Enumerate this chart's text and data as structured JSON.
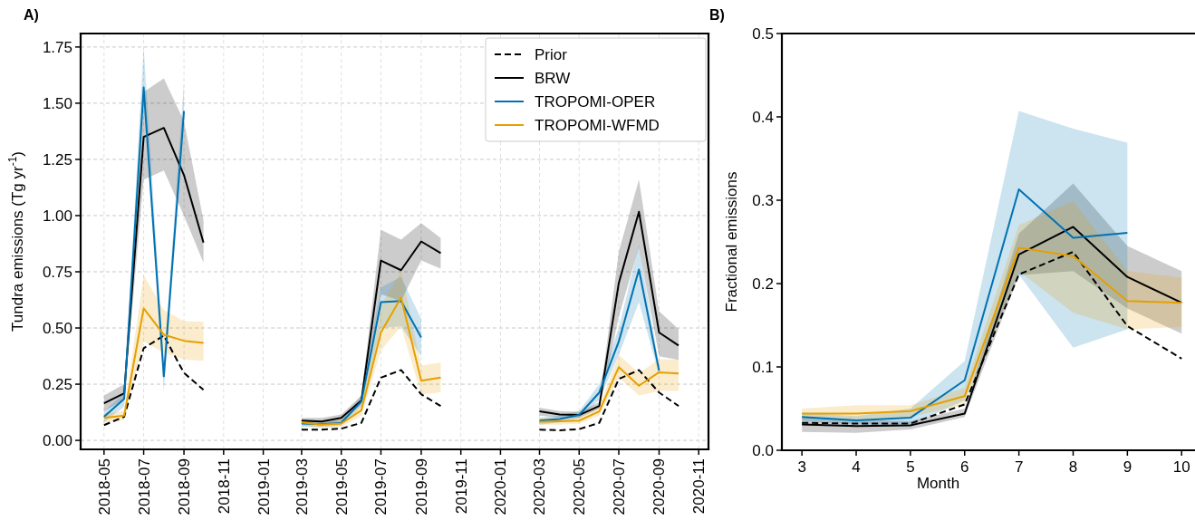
{
  "chart_data": [
    {
      "type": "line",
      "title": "A)",
      "ylabel": "Tundra emissions (Tg yr$^{-1}$)",
      "x": [
        "2018-05",
        "2018-06",
        "2018-07",
        "2018-08",
        "2018-09",
        "2018-10",
        "2018-11",
        "2019-03",
        "2019-04",
        "2019-05",
        "2019-06",
        "2019-07",
        "2019-08",
        "2019-09",
        "2019-10",
        "2019-11",
        "2020-03",
        "2020-04",
        "2020-05",
        "2020-06",
        "2020-07",
        "2020-08",
        "2020-09",
        "2020-10"
      ],
      "series": [
        {
          "name": "Prior",
          "color": "#000000",
          "line_style": "dashed",
          "values": [
            0.068,
            0.105,
            0.41,
            0.466,
            0.3,
            0.225,
            null,
            0.048,
            0.048,
            0.052,
            0.078,
            0.279,
            0.313,
            0.205,
            0.153,
            null,
            0.048,
            0.045,
            0.05,
            0.078,
            0.273,
            0.313,
            0.213,
            0.153
          ]
        },
        {
          "name": "BRW",
          "color": "#000000",
          "line_style": "solid",
          "values": [
            0.165,
            0.209,
            1.35,
            1.39,
            1.18,
            0.88,
            null,
            0.088,
            0.084,
            0.1,
            0.178,
            0.8,
            0.757,
            0.885,
            0.833,
            null,
            0.129,
            0.115,
            0.113,
            0.153,
            0.7,
            1.017,
            0.48,
            0.422
          ],
          "lower": [
            0.13,
            0.18,
            1.16,
            1.2,
            1.0,
            0.79,
            null,
            0.075,
            0.07,
            0.085,
            0.16,
            0.65,
            0.62,
            0.8,
            0.764,
            null,
            0.11,
            0.1,
            0.1,
            0.14,
            0.55,
            0.86,
            0.374,
            0.358
          ],
          "upper": [
            0.2,
            0.25,
            1.55,
            1.61,
            1.42,
            0.98,
            null,
            0.1,
            0.1,
            0.115,
            0.2,
            0.937,
            0.893,
            0.967,
            0.9,
            null,
            0.145,
            0.13,
            0.127,
            0.17,
            0.84,
            1.16,
            0.575,
            0.495
          ]
        },
        {
          "name": "TROPOMI-OPER",
          "color": "#0072b2",
          "line_style": "solid",
          "values": [
            0.105,
            0.185,
            1.57,
            0.285,
            1.465,
            null,
            null,
            0.075,
            0.072,
            0.078,
            0.173,
            0.615,
            0.62,
            0.458,
            null,
            null,
            0.088,
            0.095,
            0.113,
            0.213,
            0.44,
            0.76,
            0.31,
            null
          ],
          "lower": [
            0.08,
            0.15,
            1.5,
            0.22,
            1.4,
            null,
            null,
            0.06,
            0.06,
            0.065,
            0.15,
            0.5,
            0.507,
            0.374,
            null,
            null,
            0.07,
            0.08,
            0.1,
            0.18,
            0.38,
            0.615,
            0.29,
            null
          ],
          "upper": [
            0.13,
            0.21,
            1.75,
            0.35,
            1.59,
            null,
            null,
            0.09,
            0.085,
            0.09,
            0.2,
            0.68,
            0.728,
            0.54,
            null,
            null,
            0.1,
            0.11,
            0.13,
            0.25,
            0.5,
            0.87,
            0.33,
            null
          ]
        },
        {
          "name": "TROPOMI-WFMD",
          "color": "#e69f00",
          "line_style": "solid",
          "values": [
            0.1,
            0.11,
            0.587,
            0.47,
            0.443,
            0.434,
            null,
            0.08,
            0.07,
            0.075,
            0.134,
            0.48,
            0.635,
            0.265,
            0.279,
            null,
            0.083,
            0.085,
            0.088,
            0.129,
            0.326,
            0.243,
            0.303,
            0.298
          ],
          "lower": [
            0.08,
            0.09,
            0.44,
            0.39,
            0.36,
            0.354,
            null,
            0.065,
            0.055,
            0.06,
            0.11,
            0.4,
            0.507,
            0.205,
            0.214,
            null,
            0.07,
            0.07,
            0.075,
            0.11,
            0.28,
            0.2,
            0.22,
            0.22
          ],
          "upper": [
            0.12,
            0.13,
            0.735,
            0.58,
            0.53,
            0.527,
            null,
            0.095,
            0.085,
            0.09,
            0.16,
            0.6,
            0.75,
            0.333,
            0.346,
            null,
            0.1,
            0.1,
            0.105,
            0.15,
            0.38,
            0.3,
            0.36,
            0.36
          ]
        }
      ],
      "xlim": [
        "2018-03-26",
        "2020-11-16"
      ],
      "xticks": [
        "2018-05",
        "2018-07",
        "2018-09",
        "2018-11",
        "2019-01",
        "2019-03",
        "2019-05",
        "2019-07",
        "2019-09",
        "2019-11",
        "2020-01",
        "2020-03",
        "2020-05",
        "2020-07",
        "2020-09",
        "2020-11"
      ],
      "ylim": [
        -0.04,
        1.81
      ],
      "yticks": [
        {
          "value": 0,
          "label": "0.00"
        },
        {
          "value": 0.25,
          "label": "0.25"
        },
        {
          "value": 0.5,
          "label": "0.50"
        },
        {
          "value": 0.75,
          "label": "0.75"
        },
        {
          "value": 1,
          "label": "1.00"
        },
        {
          "value": 1.25,
          "label": "1.25"
        },
        {
          "value": 1.5,
          "label": "1.50"
        },
        {
          "value": 1.75,
          "label": "1.75"
        }
      ],
      "grid": true,
      "legend": "top right"
    },
    {
      "type": "line",
      "title": "B)",
      "xlabel": "Month",
      "ylabel": "Fractional emissions",
      "x": [
        3,
        4,
        5,
        6,
        7,
        8,
        9,
        10
      ],
      "series": [
        {
          "color": "#000000",
          "line_style": "dashed",
          "values": [
            0.033,
            0.032,
            0.032,
            0.055,
            0.211,
            0.238,
            0.149,
            0.11
          ]
        },
        {
          "color": "#000000",
          "line_style": "solid",
          "values": [
            0.031,
            0.029,
            0.03,
            0.044,
            0.235,
            0.268,
            0.208,
            0.177
          ],
          "lower": [
            0.022,
            0.021,
            0.025,
            0.04,
            0.21,
            0.215,
            0.17,
            0.14
          ],
          "upper": [
            0.04,
            0.037,
            0.035,
            0.05,
            0.26,
            0.32,
            0.245,
            0.215
          ]
        },
        {
          "color": "#0072b2",
          "line_style": "solid",
          "values": [
            0.04,
            0.036,
            0.039,
            0.084,
            0.313,
            0.255,
            0.261,
            null
          ],
          "lower": [
            0.035,
            0.031,
            0.03,
            0.06,
            0.211,
            0.123,
            0.145,
            null
          ],
          "upper": [
            0.045,
            0.041,
            0.05,
            0.107,
            0.407,
            0.386,
            0.369,
            null
          ]
        },
        {
          "color": "#e69f00",
          "line_style": "solid",
          "values": [
            0.044,
            0.044,
            0.047,
            0.065,
            0.243,
            0.233,
            0.179,
            0.177
          ],
          "lower": [
            0.038,
            0.036,
            0.04,
            0.055,
            0.215,
            0.165,
            0.145,
            0.148
          ],
          "upper": [
            0.05,
            0.054,
            0.054,
            0.075,
            0.27,
            0.299,
            0.215,
            0.207
          ]
        }
      ],
      "xlim": [
        2.63,
        10.23
      ],
      "xticks": [
        3,
        4,
        5,
        6,
        7,
        8,
        9,
        10
      ],
      "ylim": [
        0,
        0.5
      ],
      "yticks": [
        {
          "value": 0,
          "label": "0.0"
        },
        {
          "value": 0.1,
          "label": "0.1"
        },
        {
          "value": 0.2,
          "label": "0.2"
        },
        {
          "value": 0.3,
          "label": "0.3"
        },
        {
          "value": 0.4,
          "label": "0.4"
        },
        {
          "value": 0.5,
          "label": "0.5"
        }
      ],
      "grid": false,
      "legend": false
    }
  ]
}
